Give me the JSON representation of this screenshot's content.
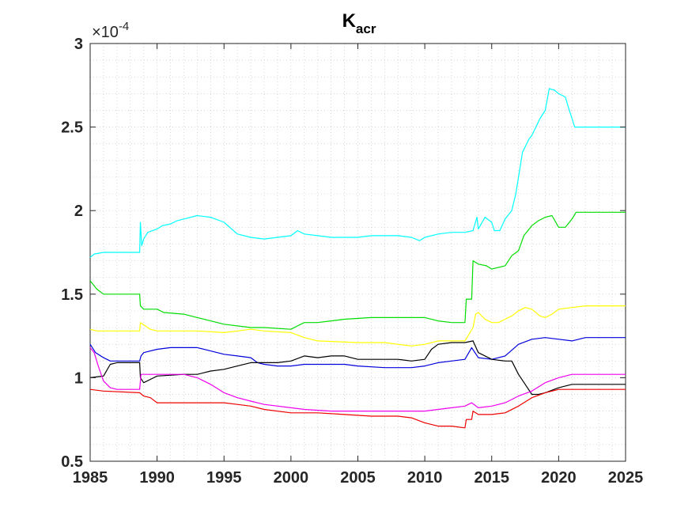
{
  "chart_data": {
    "type": "line",
    "title": "K",
    "title_subscript": "acr",
    "xlabel": "",
    "ylabel": "",
    "y_exponent_prefix": "×10",
    "y_exponent": "-4",
    "xlim": [
      1985,
      2025
    ],
    "ylim": [
      0.5,
      3
    ],
    "x_ticks": [
      1985,
      1990,
      1995,
      2000,
      2005,
      2010,
      2015,
      2020,
      2025
    ],
    "y_ticks": [
      0.5,
      1,
      1.5,
      2,
      2.5,
      3
    ],
    "x_tick_labels": [
      "1985",
      "1990",
      "1995",
      "2000",
      "2005",
      "2010",
      "2015",
      "2020",
      "2025"
    ],
    "y_tick_labels": [
      "0.5",
      "1",
      "1.5",
      "2",
      "2.5",
      "3"
    ],
    "grid": "dotted-minor",
    "series": [
      {
        "color": "#00ffff",
        "points": [
          [
            1985,
            1.72
          ],
          [
            1985.3,
            1.74
          ],
          [
            1986,
            1.75
          ],
          [
            1988.7,
            1.75
          ],
          [
            1988.75,
            1.93
          ],
          [
            1988.85,
            1.79
          ],
          [
            1989,
            1.83
          ],
          [
            1989.3,
            1.87
          ],
          [
            1990,
            1.89
          ],
          [
            1990.4,
            1.91
          ],
          [
            1991,
            1.92
          ],
          [
            1991.5,
            1.94
          ],
          [
            1992,
            1.95
          ],
          [
            1993,
            1.97
          ],
          [
            1994,
            1.96
          ],
          [
            1995,
            1.93
          ],
          [
            1996,
            1.86
          ],
          [
            1997,
            1.84
          ],
          [
            1998,
            1.83
          ],
          [
            1999,
            1.84
          ],
          [
            2000,
            1.85
          ],
          [
            2000.5,
            1.88
          ],
          [
            2001,
            1.86
          ],
          [
            2002,
            1.85
          ],
          [
            2003,
            1.84
          ],
          [
            2005,
            1.84
          ],
          [
            2006,
            1.85
          ],
          [
            2007,
            1.85
          ],
          [
            2008,
            1.85
          ],
          [
            2009,
            1.84
          ],
          [
            2009.6,
            1.82
          ],
          [
            2010,
            1.84
          ],
          [
            2011,
            1.86
          ],
          [
            2012,
            1.87
          ],
          [
            2013,
            1.87
          ],
          [
            2013.6,
            1.88
          ],
          [
            2013.9,
            1.96
          ],
          [
            2014,
            1.89
          ],
          [
            2014.5,
            1.96
          ],
          [
            2015,
            1.93
          ],
          [
            2015.2,
            1.88
          ],
          [
            2015.6,
            1.88
          ],
          [
            2016,
            1.95
          ],
          [
            2016.5,
            2.0
          ],
          [
            2016.8,
            2.1
          ],
          [
            2017,
            2.2
          ],
          [
            2017.3,
            2.35
          ],
          [
            2017.8,
            2.43
          ],
          [
            2018,
            2.45
          ],
          [
            2018.6,
            2.55
          ],
          [
            2019,
            2.6
          ],
          [
            2019.3,
            2.73
          ],
          [
            2019.7,
            2.72
          ],
          [
            2020,
            2.7
          ],
          [
            2020.5,
            2.68
          ],
          [
            2020.8,
            2.6
          ],
          [
            2021.2,
            2.5
          ],
          [
            2025,
            2.5
          ]
        ]
      },
      {
        "color": "#00dd00",
        "points": [
          [
            1985,
            1.58
          ],
          [
            1985.5,
            1.53
          ],
          [
            1986,
            1.5
          ],
          [
            1988.7,
            1.5
          ],
          [
            1988.75,
            1.43
          ],
          [
            1989,
            1.41
          ],
          [
            1990,
            1.41
          ],
          [
            1990.5,
            1.39
          ],
          [
            1992,
            1.38
          ],
          [
            1993,
            1.36
          ],
          [
            1994,
            1.34
          ],
          [
            1995,
            1.32
          ],
          [
            1997,
            1.3
          ],
          [
            1998,
            1.3
          ],
          [
            2000,
            1.29
          ],
          [
            2000.5,
            1.31
          ],
          [
            2001,
            1.33
          ],
          [
            2002,
            1.33
          ],
          [
            2003,
            1.34
          ],
          [
            2004,
            1.35
          ],
          [
            2006,
            1.36
          ],
          [
            2008,
            1.36
          ],
          [
            2010,
            1.36
          ],
          [
            2011,
            1.34
          ],
          [
            2012,
            1.33
          ],
          [
            2013,
            1.33
          ],
          [
            2013.1,
            1.47
          ],
          [
            2013.5,
            1.47
          ],
          [
            2013.6,
            1.7
          ],
          [
            2014,
            1.68
          ],
          [
            2014.6,
            1.67
          ],
          [
            2015,
            1.65
          ],
          [
            2016,
            1.67
          ],
          [
            2016.5,
            1.73
          ],
          [
            2017,
            1.76
          ],
          [
            2017.4,
            1.85
          ],
          [
            2018,
            1.91
          ],
          [
            2018.5,
            1.94
          ],
          [
            2019,
            1.96
          ],
          [
            2019.5,
            1.97
          ],
          [
            2020,
            1.9
          ],
          [
            2020.5,
            1.9
          ],
          [
            2021,
            1.95
          ],
          [
            2021.3,
            1.99
          ],
          [
            2025,
            1.99
          ]
        ]
      },
      {
        "color": "#ffff00",
        "points": [
          [
            1985,
            1.29
          ],
          [
            1985.5,
            1.28
          ],
          [
            1988.7,
            1.28
          ],
          [
            1988.75,
            1.33
          ],
          [
            1989.5,
            1.29
          ],
          [
            1990,
            1.28
          ],
          [
            1993,
            1.28
          ],
          [
            1995,
            1.27
          ],
          [
            1996,
            1.28
          ],
          [
            1997,
            1.29
          ],
          [
            1998,
            1.28
          ],
          [
            2000,
            1.27
          ],
          [
            2001,
            1.24
          ],
          [
            2002,
            1.22
          ],
          [
            2005,
            1.21
          ],
          [
            2007,
            1.21
          ],
          [
            2008,
            1.2
          ],
          [
            2009,
            1.19
          ],
          [
            2010,
            1.2
          ],
          [
            2011,
            1.22
          ],
          [
            2012,
            1.22
          ],
          [
            2013,
            1.22
          ],
          [
            2013.6,
            1.3
          ],
          [
            2013.8,
            1.38
          ],
          [
            2014,
            1.39
          ],
          [
            2014.5,
            1.35
          ],
          [
            2015,
            1.33
          ],
          [
            2015.5,
            1.33
          ],
          [
            2016,
            1.35
          ],
          [
            2016.5,
            1.37
          ],
          [
            2017,
            1.4
          ],
          [
            2017.5,
            1.42
          ],
          [
            2018,
            1.41
          ],
          [
            2018.6,
            1.37
          ],
          [
            2019,
            1.36
          ],
          [
            2019.5,
            1.38
          ],
          [
            2020,
            1.41
          ],
          [
            2021,
            1.42
          ],
          [
            2022,
            1.43
          ],
          [
            2025,
            1.43
          ]
        ]
      },
      {
        "color": "#0000dd",
        "points": [
          [
            1985,
            1.2
          ],
          [
            1985.4,
            1.15
          ],
          [
            1986,
            1.12
          ],
          [
            1986.5,
            1.1
          ],
          [
            1988.7,
            1.1
          ],
          [
            1988.8,
            1.13
          ],
          [
            1989,
            1.15
          ],
          [
            1990,
            1.17
          ],
          [
            1991,
            1.18
          ],
          [
            1993,
            1.18
          ],
          [
            1994,
            1.16
          ],
          [
            1995,
            1.14
          ],
          [
            1996,
            1.13
          ],
          [
            1997,
            1.12
          ],
          [
            1997.5,
            1.09
          ],
          [
            1998,
            1.08
          ],
          [
            1999,
            1.07
          ],
          [
            2000,
            1.07
          ],
          [
            2001,
            1.08
          ],
          [
            2002,
            1.08
          ],
          [
            2004,
            1.08
          ],
          [
            2005,
            1.07
          ],
          [
            2007,
            1.06
          ],
          [
            2009,
            1.06
          ],
          [
            2010,
            1.07
          ],
          [
            2011,
            1.09
          ],
          [
            2012,
            1.1
          ],
          [
            2013,
            1.11
          ],
          [
            2013.5,
            1.18
          ],
          [
            2014,
            1.12
          ],
          [
            2015,
            1.11
          ],
          [
            2016,
            1.13
          ],
          [
            2017,
            1.2
          ],
          [
            2018,
            1.23
          ],
          [
            2019,
            1.24
          ],
          [
            2020,
            1.23
          ],
          [
            2021,
            1.22
          ],
          [
            2022,
            1.24
          ],
          [
            2025,
            1.24
          ]
        ]
      },
      {
        "color": "#000000",
        "points": [
          [
            1985,
            1.0
          ],
          [
            1986,
            1.01
          ],
          [
            1986.5,
            1.08
          ],
          [
            1987,
            1.09
          ],
          [
            1988.7,
            1.09
          ],
          [
            1988.75,
            1.0
          ],
          [
            1989,
            0.97
          ],
          [
            1989.5,
            0.99
          ],
          [
            1990,
            1.01
          ],
          [
            1992,
            1.02
          ],
          [
            1993,
            1.02
          ],
          [
            1994,
            1.04
          ],
          [
            1995,
            1.05
          ],
          [
            1996,
            1.07
          ],
          [
            1997,
            1.09
          ],
          [
            1999,
            1.09
          ],
          [
            2000,
            1.1
          ],
          [
            2001,
            1.13
          ],
          [
            2002,
            1.12
          ],
          [
            2003,
            1.13
          ],
          [
            2004,
            1.13
          ],
          [
            2005,
            1.11
          ],
          [
            2007,
            1.11
          ],
          [
            2008,
            1.11
          ],
          [
            2009,
            1.1
          ],
          [
            2010,
            1.11
          ],
          [
            2010.5,
            1.17
          ],
          [
            2011,
            1.2
          ],
          [
            2012,
            1.21
          ],
          [
            2013,
            1.21
          ],
          [
            2013.6,
            1.22
          ],
          [
            2014,
            1.15
          ],
          [
            2015,
            1.11
          ],
          [
            2016,
            1.1
          ],
          [
            2016.5,
            1.1
          ],
          [
            2017,
            1.02
          ],
          [
            2017.5,
            0.96
          ],
          [
            2018,
            0.9
          ],
          [
            2018.5,
            0.9
          ],
          [
            2019,
            0.91
          ],
          [
            2020,
            0.94
          ],
          [
            2021,
            0.96
          ],
          [
            2025,
            0.96
          ]
        ]
      },
      {
        "color": "#ee00ee",
        "points": [
          [
            1985,
            1.18
          ],
          [
            1985.3,
            1.15
          ],
          [
            1985.6,
            1.07
          ],
          [
            1986,
            0.98
          ],
          [
            1986.5,
            0.94
          ],
          [
            1987,
            0.93
          ],
          [
            1988.7,
            0.93
          ],
          [
            1988.8,
            1.02
          ],
          [
            1990,
            1.02
          ],
          [
            1992,
            1.02
          ],
          [
            1993,
            1.0
          ],
          [
            1994,
            0.96
          ],
          [
            1995,
            0.91
          ],
          [
            1996,
            0.88
          ],
          [
            1997,
            0.86
          ],
          [
            1998,
            0.84
          ],
          [
            2000,
            0.82
          ],
          [
            2001,
            0.81
          ],
          [
            2003,
            0.8
          ],
          [
            2005,
            0.8
          ],
          [
            2008,
            0.8
          ],
          [
            2010,
            0.8
          ],
          [
            2011,
            0.81
          ],
          [
            2012,
            0.82
          ],
          [
            2013,
            0.83
          ],
          [
            2013.5,
            0.85
          ],
          [
            2014,
            0.82
          ],
          [
            2015,
            0.83
          ],
          [
            2016,
            0.85
          ],
          [
            2017,
            0.89
          ],
          [
            2018,
            0.92
          ],
          [
            2019,
            0.97
          ],
          [
            2020,
            1.0
          ],
          [
            2021,
            1.02
          ],
          [
            2025,
            1.02
          ]
        ]
      },
      {
        "color": "#ee0000",
        "points": [
          [
            1985,
            0.93
          ],
          [
            1986,
            0.92
          ],
          [
            1988.7,
            0.91
          ],
          [
            1989,
            0.89
          ],
          [
            1989.5,
            0.88
          ],
          [
            1990,
            0.85
          ],
          [
            1992,
            0.85
          ],
          [
            1993,
            0.85
          ],
          [
            1995,
            0.85
          ],
          [
            1996,
            0.84
          ],
          [
            1997,
            0.83
          ],
          [
            1998,
            0.81
          ],
          [
            2000,
            0.79
          ],
          [
            2002,
            0.79
          ],
          [
            2004,
            0.78
          ],
          [
            2006,
            0.77
          ],
          [
            2008,
            0.77
          ],
          [
            2009,
            0.76
          ],
          [
            2010,
            0.73
          ],
          [
            2011,
            0.71
          ],
          [
            2012,
            0.71
          ],
          [
            2013,
            0.7
          ],
          [
            2013.1,
            0.75
          ],
          [
            2013.5,
            0.75
          ],
          [
            2013.6,
            0.8
          ],
          [
            2014,
            0.78
          ],
          [
            2015,
            0.78
          ],
          [
            2016,
            0.79
          ],
          [
            2017,
            0.83
          ],
          [
            2018,
            0.88
          ],
          [
            2019,
            0.91
          ],
          [
            2020,
            0.93
          ],
          [
            2025,
            0.93
          ]
        ]
      }
    ]
  }
}
